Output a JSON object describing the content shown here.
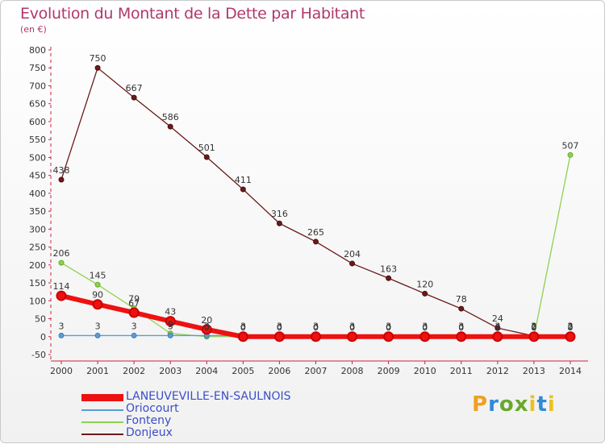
{
  "header": {
    "title": "Evolution du Montant de la Dette par Habitant",
    "unit": "(en €)"
  },
  "logo": {
    "text": "Proxiti"
  },
  "chart_data": {
    "type": "line",
    "title": "Evolution du Montant de la Dette par Habitant",
    "subtitle": "(en €)",
    "xlabel": "",
    "ylabel": "",
    "x": [
      "2000",
      "2001",
      "2002",
      "2003",
      "2004",
      "2005",
      "2006",
      "2007",
      "2008",
      "2009",
      "2010",
      "2011",
      "2012",
      "2013",
      "2014"
    ],
    "ylim": [
      -50,
      800
    ],
    "yticks": [
      -50,
      0,
      50,
      100,
      150,
      200,
      250,
      300,
      350,
      400,
      450,
      500,
      550,
      600,
      650,
      700,
      750,
      800
    ],
    "grid": false,
    "legend_position": "bottom-left",
    "series": [
      {
        "name": "LANEUVEVILLE-EN-SAULNOIS",
        "color": "#ee1111",
        "values": [
          114,
          90,
          67,
          43,
          20,
          0,
          0,
          0,
          0,
          0,
          0,
          0,
          0,
          0,
          0
        ],
        "labels": [
          "114",
          "90",
          "67",
          "43",
          "20",
          "0",
          "0",
          "0",
          "0",
          "0",
          "0",
          "0",
          "0",
          "0",
          "0"
        ]
      },
      {
        "name": "Oriocourt",
        "color": "#5b9bd5",
        "values": [
          3,
          3,
          3,
          3,
          3,
          3,
          3,
          3,
          3,
          3,
          3,
          3,
          3,
          3,
          3
        ],
        "labels": [
          "3",
          "3",
          "3",
          "3",
          "3",
          "3",
          "3",
          "3",
          "3",
          "3",
          "3",
          "3",
          "3",
          "3",
          "3"
        ]
      },
      {
        "name": "Fonteny",
        "color": "#8fd14f",
        "values": [
          206,
          145,
          79,
          9,
          0,
          0,
          0,
          0,
          0,
          0,
          0,
          0,
          0,
          0,
          507
        ],
        "labels": [
          "206",
          "145",
          "79",
          "9",
          "0",
          "0",
          "0",
          "0",
          "0",
          "0",
          "0",
          "0",
          "0",
          "0",
          "507"
        ]
      },
      {
        "name": "Donjeux",
        "color": "#6b1a1a",
        "values": [
          438,
          750,
          667,
          586,
          501,
          411,
          316,
          265,
          204,
          163,
          120,
          78,
          24,
          2,
          2
        ],
        "labels": [
          "438",
          "750",
          "667",
          "586",
          "501",
          "411",
          "316",
          "265",
          "204",
          "163",
          "120",
          "78",
          "24",
          "2",
          "2"
        ]
      }
    ]
  }
}
